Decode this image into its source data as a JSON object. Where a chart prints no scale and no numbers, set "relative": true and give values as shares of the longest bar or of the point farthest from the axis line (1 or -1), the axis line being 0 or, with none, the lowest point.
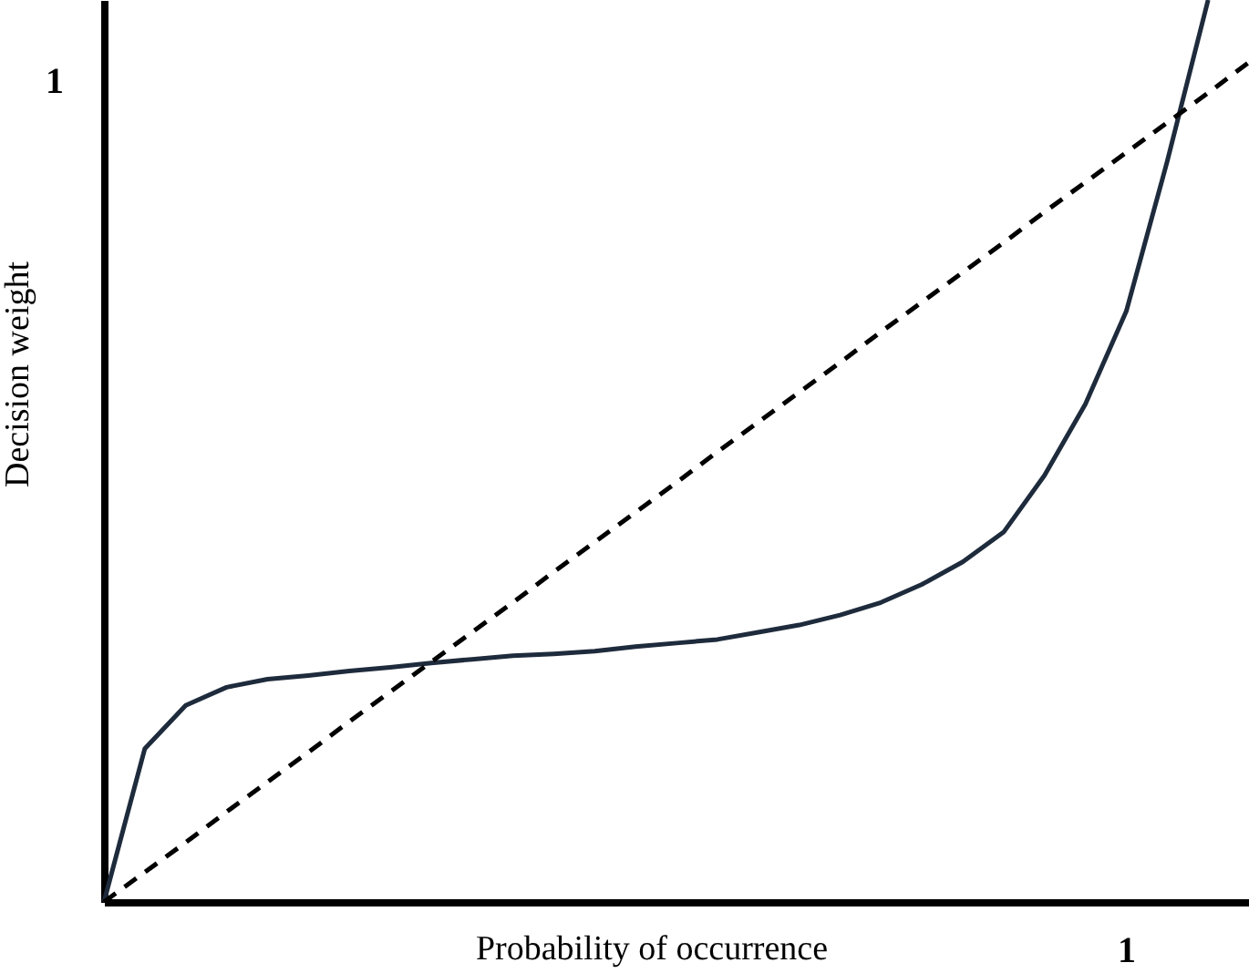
{
  "chart_data": {
    "type": "line",
    "xlabel": "Probability of occurrence",
    "ylabel": "Decision weight",
    "relative": true,
    "annotations": [
      "1",
      "1"
    ],
    "categories": [
      null,
      null,
      null,
      null,
      null,
      null,
      null,
      null,
      null,
      null,
      null,
      null,
      null,
      null,
      null,
      null,
      null,
      null,
      null,
      null,
      null,
      null,
      null,
      null,
      null,
      null,
      null,
      null,
      null
    ],
    "series": [
      {
        "color": "#1e2b3c",
        "line_style": "solid",
        "values": [
          0,
          0.17,
          0.218,
          0.238,
          0.247,
          0.251,
          0.256,
          0.26,
          0.265,
          0.269,
          0.273,
          0.275,
          0.278,
          0.283,
          0.287,
          0.291,
          0.299,
          0.307,
          0.318,
          0.332,
          0.352,
          0.377,
          0.41,
          0.473,
          0.552,
          0.655,
          0.821,
          1,
          null
        ]
      },
      {
        "color": "#000000",
        "line_style": "dashed",
        "values": [
          0,
          0.033,
          0.066,
          0.1,
          0.133,
          0.166,
          0.2,
          0.233,
          0.266,
          0.299,
          0.332,
          0.366,
          0.399,
          0.432,
          0.465,
          0.499,
          0.532,
          0.565,
          0.598,
          0.632,
          0.665,
          0.698,
          0.731,
          0.765,
          0.798,
          0.831,
          0.864,
          0.897,
          0.931
        ]
      }
    ]
  }
}
